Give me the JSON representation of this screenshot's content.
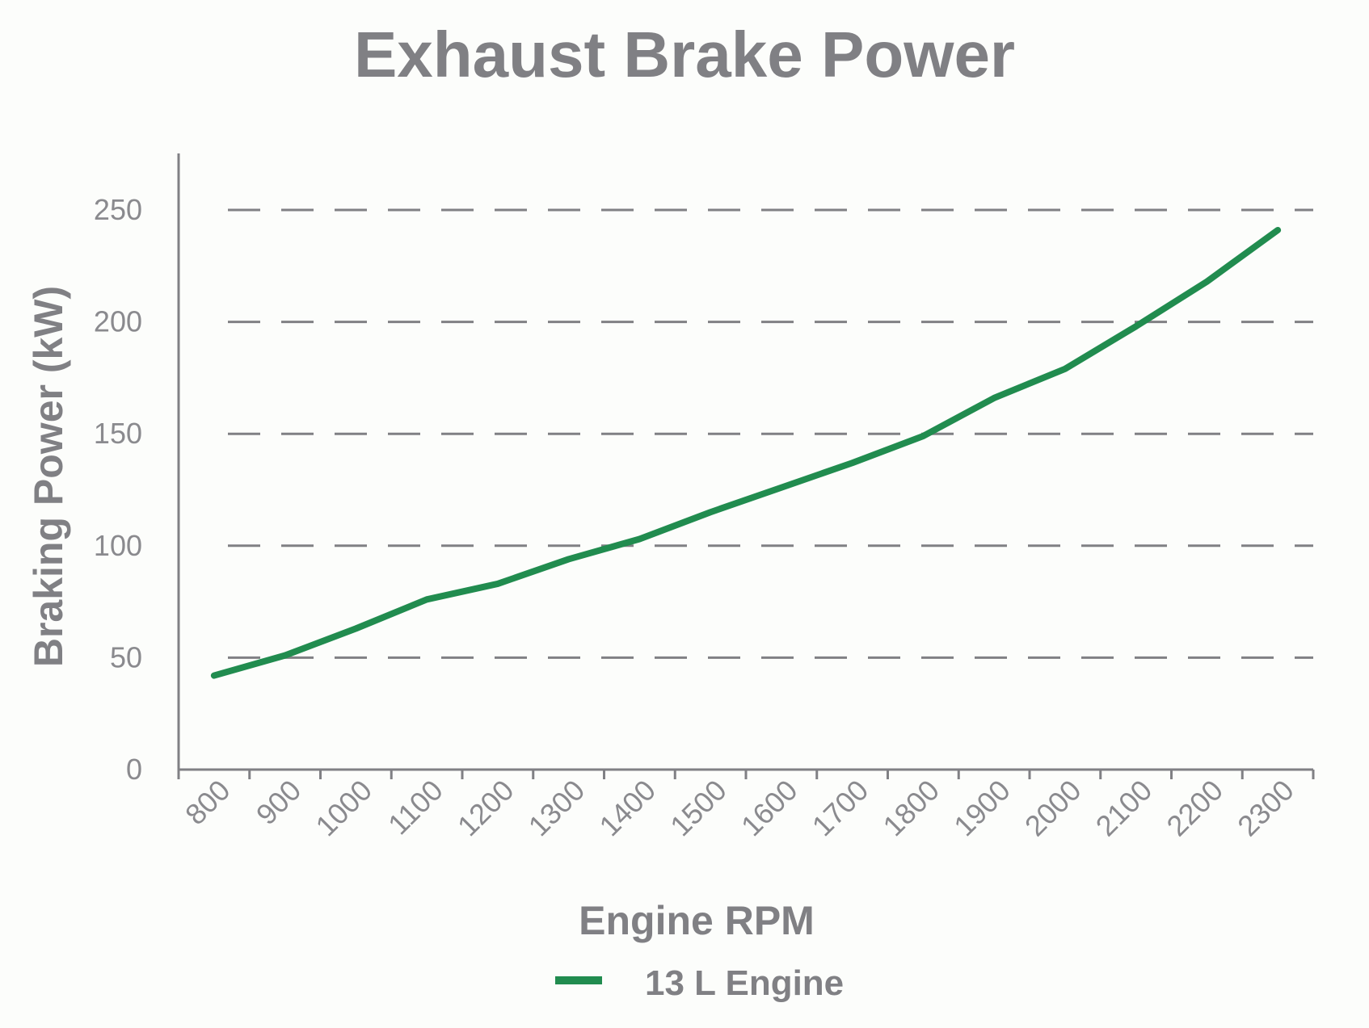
{
  "chart_data": {
    "type": "line",
    "title": "Exhaust Brake Power",
    "xlabel": "Engine RPM",
    "ylabel": "Braking Power (kW)",
    "categories": [
      "800",
      "900",
      "1000",
      "1100",
      "1200",
      "1300",
      "1400",
      "1500",
      "1600",
      "1700",
      "1800",
      "1900",
      "2000",
      "2100",
      "2200",
      "2300"
    ],
    "yticks": [
      0,
      50,
      100,
      150,
      200,
      250
    ],
    "ylim": [
      0,
      275
    ],
    "grid": "horizontal dashed",
    "legend_position": "bottom-center",
    "series": [
      {
        "name": "13 L Engine",
        "color": "#218c4f",
        "values": [
          42,
          51,
          63,
          76,
          83,
          94,
          103,
          115,
          126,
          137,
          149,
          166,
          179,
          198,
          218,
          241
        ]
      }
    ]
  }
}
